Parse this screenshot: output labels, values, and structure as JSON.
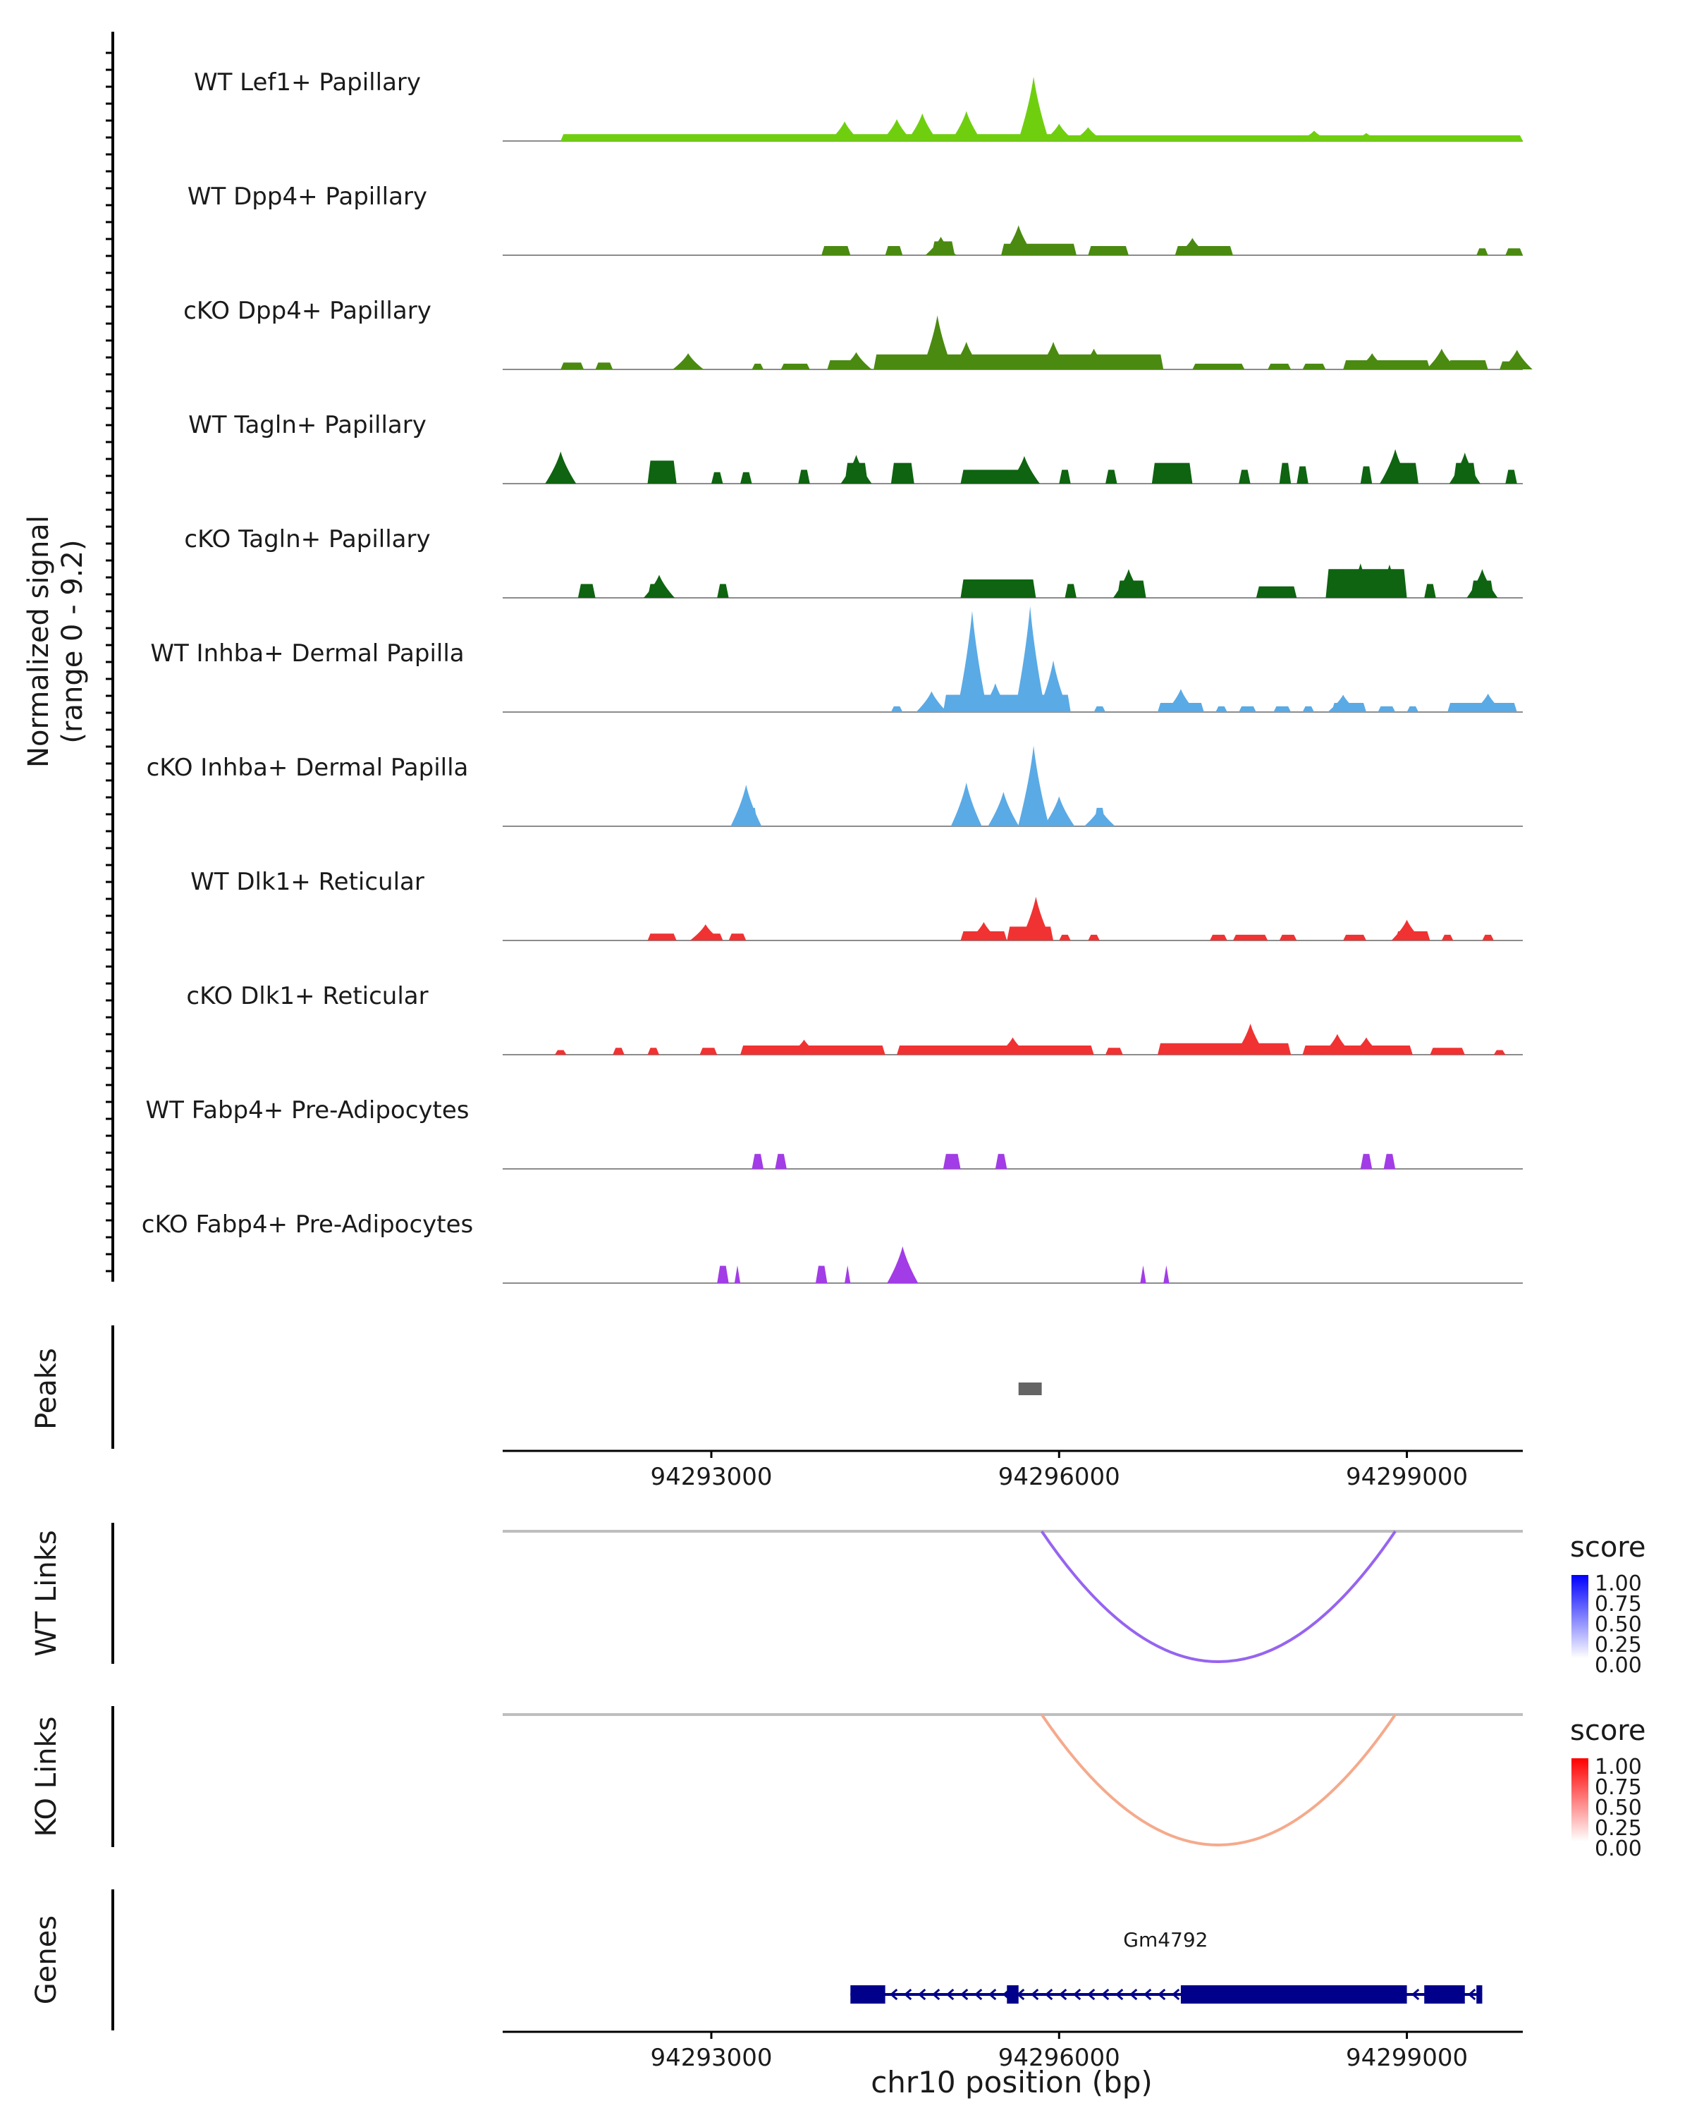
{
  "chart_data": {
    "type": "area",
    "title": "",
    "xlabel": "chr10 position (bp)",
    "ylabel": "Normalized signal\n(range 0 - 9.2)",
    "y_axis_line1": "Normalized signal",
    "y_axis_line2": "(range 0 - 9.2)",
    "ylim": [
      0,
      9.2
    ],
    "xlim": [
      94291200,
      94300000
    ],
    "x_ticks": [
      {
        "value": 94293000,
        "label": "94293000"
      },
      {
        "value": 94296000,
        "label": "94296000"
      },
      {
        "value": 94299000,
        "label": "94299000"
      }
    ],
    "coverage_tracks": [
      {
        "name": "WT Lef1+ Papillary",
        "color": "#6fcf0f",
        "regions": [
          [
            94291700,
            94296000,
            0.6
          ],
          [
            94296000,
            94300000,
            0.5
          ]
        ],
        "peaks": [
          [
            94294150,
            1.7
          ],
          [
            94294600,
            1.9
          ],
          [
            94294820,
            2.4
          ],
          [
            94295200,
            2.6
          ],
          [
            94295780,
            5.6
          ],
          [
            94296000,
            1.5
          ],
          [
            94296250,
            1.2
          ],
          [
            94298200,
            0.9
          ],
          [
            94298650,
            0.7
          ]
        ]
      },
      {
        "name": "WT Dpp4+ Papillary",
        "color": "#4a8a10",
        "regions": [
          [
            94293950,
            94294200,
            0.8
          ],
          [
            94294500,
            94294650,
            0.8
          ],
          [
            94294900,
            94295100,
            1.2
          ],
          [
            94295500,
            94296150,
            1.0
          ],
          [
            94296250,
            94296600,
            0.8
          ],
          [
            94297000,
            94297500,
            0.8
          ],
          [
            94299600,
            94299700,
            0.6
          ],
          [
            94299850,
            94300000,
            0.6
          ]
        ],
        "peaks": [
          [
            94295650,
            2.6
          ],
          [
            94297150,
            1.5
          ],
          [
            94294980,
            1.6
          ]
        ]
      },
      {
        "name": "cKO Dpp4+ Papillary",
        "color": "#4a8a10",
        "regions": [
          [
            94291700,
            94291900,
            0.6
          ],
          [
            94292000,
            94292150,
            0.6
          ],
          [
            94293350,
            94293450,
            0.5
          ],
          [
            94293600,
            94293850,
            0.5
          ],
          [
            94294000,
            94294300,
            0.8
          ],
          [
            94294400,
            94296900,
            1.3
          ],
          [
            94297150,
            94297600,
            0.5
          ],
          [
            94297800,
            94298000,
            0.5
          ],
          [
            94298100,
            94298300,
            0.5
          ],
          [
            94298450,
            94299200,
            0.8
          ],
          [
            94299350,
            94299700,
            0.8
          ],
          [
            94299800,
            94300000,
            0.7
          ],
          [
            94300050,
            94300300,
            0.5
          ]
        ],
        "peaks": [
          [
            94292800,
            1.4
          ],
          [
            94294250,
            1.5
          ],
          [
            94294950,
            4.7
          ],
          [
            94295200,
            2.4
          ],
          [
            94295950,
            2.4
          ],
          [
            94296300,
            1.8
          ],
          [
            94298700,
            1.4
          ],
          [
            94299300,
            1.8
          ],
          [
            94299950,
            1.7
          ],
          [
            94300100,
            3.0
          ],
          [
            94300300,
            2.0
          ]
        ]
      },
      {
        "name": "WT Tagln+ Papillary",
        "color": "#0e6410",
        "regions": [
          [
            94291650,
            94291750,
            2.0
          ],
          [
            94292450,
            94292700,
            2.0
          ],
          [
            94293000,
            94293100,
            1.0
          ],
          [
            94293250,
            94293350,
            1.0
          ],
          [
            94293750,
            94293850,
            1.2
          ],
          [
            94294150,
            94294350,
            1.8
          ],
          [
            94294550,
            94294750,
            1.8
          ],
          [
            94295150,
            94295750,
            1.2
          ],
          [
            94296000,
            94296100,
            1.2
          ],
          [
            94296400,
            94296500,
            1.2
          ],
          [
            94296800,
            94297150,
            1.8
          ],
          [
            94297550,
            94297650,
            1.2
          ],
          [
            94297900,
            94298000,
            1.8
          ],
          [
            94298050,
            94298150,
            1.5
          ],
          [
            94298600,
            94298700,
            1.5
          ],
          [
            94298850,
            94299100,
            1.8
          ],
          [
            94299400,
            94299600,
            1.8
          ],
          [
            94299850,
            94299950,
            1.2
          ],
          [
            94300150,
            94300250,
            1.2
          ],
          [
            94300550,
            94300650,
            1.2
          ]
        ],
        "peaks": [
          [
            94291700,
            2.8
          ],
          [
            94298900,
            3.0
          ],
          [
            94299500,
            2.7
          ],
          [
            94294250,
            2.5
          ],
          [
            94295700,
            2.4
          ]
        ]
      },
      {
        "name": "cKO Tagln+ Papillary",
        "color": "#0e6410",
        "regions": [
          [
            94291850,
            94292000,
            1.2
          ],
          [
            94292450,
            94292600,
            1.2
          ],
          [
            94293050,
            94293150,
            1.2
          ],
          [
            94295150,
            94295800,
            1.6
          ],
          [
            94296050,
            94296150,
            1.2
          ],
          [
            94296500,
            94296750,
            1.5
          ],
          [
            94297700,
            94298050,
            1.0
          ],
          [
            94298300,
            94299000,
            2.5
          ],
          [
            94299150,
            94299250,
            1.2
          ],
          [
            94299550,
            94299750,
            1.5
          ],
          [
            94300200,
            94300400,
            1.5
          ]
        ],
        "peaks": [
          [
            94298600,
            3.0
          ],
          [
            94298850,
            2.9
          ],
          [
            94299650,
            2.5
          ],
          [
            94300300,
            2.6
          ],
          [
            94292550,
            2.0
          ],
          [
            94296600,
            2.5
          ]
        ]
      },
      {
        "name": "WT Inhba+ Dermal Papilla",
        "color": "#5aaae6",
        "regions": [
          [
            94294550,
            94294650,
            0.5
          ],
          [
            94294800,
            94294950,
            0.6
          ],
          [
            94295000,
            94296100,
            1.5
          ],
          [
            94296300,
            94296400,
            0.5
          ],
          [
            94296850,
            94297250,
            0.8
          ],
          [
            94297350,
            94297450,
            0.5
          ],
          [
            94297550,
            94297700,
            0.5
          ],
          [
            94297850,
            94298000,
            0.5
          ],
          [
            94298100,
            94298200,
            0.5
          ],
          [
            94298350,
            94298650,
            0.8
          ],
          [
            94298750,
            94298900,
            0.5
          ],
          [
            94299000,
            94299100,
            0.5
          ],
          [
            94299350,
            94299950,
            0.8
          ]
        ],
        "peaks": [
          [
            94295250,
            8.8
          ],
          [
            94295750,
            9.2
          ],
          [
            94295450,
            2.5
          ],
          [
            94295950,
            4.5
          ],
          [
            94294900,
            1.8
          ],
          [
            94297050,
            2.0
          ],
          [
            94298450,
            1.5
          ],
          [
            94299700,
            1.6
          ]
        ]
      },
      {
        "name": "cKO Inhba+ Dermal Papilla",
        "color": "#5aaae6",
        "regions": [
          [
            94293250,
            94293400,
            1.6
          ],
          [
            94295150,
            94295250,
            1.6
          ],
          [
            94295500,
            94295550,
            1.6
          ],
          [
            94295700,
            94295850,
            1.6
          ],
          [
            94295950,
            94296050,
            1.6
          ],
          [
            94296300,
            94296400,
            1.6
          ]
        ],
        "peaks": [
          [
            94293300,
            3.6
          ],
          [
            94295200,
            3.8
          ],
          [
            94295520,
            3.0
          ],
          [
            94295780,
            7.0
          ],
          [
            94296000,
            2.6
          ],
          [
            94296350,
            1.6
          ]
        ]
      },
      {
        "name": "WT Dlk1+ Reticular",
        "color": "#f03232",
        "regions": [
          [
            94292450,
            94292700,
            0.6
          ],
          [
            94292900,
            94293100,
            0.6
          ],
          [
            94293150,
            94293300,
            0.6
          ],
          [
            94295150,
            94295550,
            0.8
          ],
          [
            94295550,
            94295950,
            1.2
          ],
          [
            94296000,
            94296100,
            0.5
          ],
          [
            94296250,
            94296350,
            0.5
          ],
          [
            94297300,
            94297450,
            0.5
          ],
          [
            94297500,
            94297800,
            0.5
          ],
          [
            94297900,
            94298050,
            0.5
          ],
          [
            94298450,
            94298650,
            0.5
          ],
          [
            94298900,
            94299200,
            0.8
          ],
          [
            94299300,
            94299400,
            0.5
          ],
          [
            94299650,
            94299750,
            0.5
          ],
          [
            94300000,
            94300100,
            0.5
          ]
        ],
        "peaks": [
          [
            94292950,
            1.4
          ],
          [
            94295350,
            1.6
          ],
          [
            94295800,
            3.8
          ],
          [
            94299000,
            1.8
          ]
        ]
      },
      {
        "name": "cKO Dlk1+ Reticular",
        "color": "#f03232",
        "regions": [
          [
            94291650,
            94291750,
            0.4
          ],
          [
            94292150,
            94292250,
            0.6
          ],
          [
            94292450,
            94292550,
            0.6
          ],
          [
            94292900,
            94293050,
            0.6
          ],
          [
            94293250,
            94294500,
            0.8
          ],
          [
            94294600,
            94296300,
            0.8
          ],
          [
            94296400,
            94296550,
            0.6
          ],
          [
            94296850,
            94298000,
            1.0
          ],
          [
            94298100,
            94299050,
            0.8
          ],
          [
            94299200,
            94299500,
            0.6
          ],
          [
            94299750,
            94299850,
            0.4
          ],
          [
            94300050,
            94300200,
            0.6
          ],
          [
            94300400,
            94300550,
            0.5
          ]
        ],
        "peaks": [
          [
            94293800,
            1.3
          ],
          [
            94295600,
            1.5
          ],
          [
            94297650,
            2.7
          ],
          [
            94298400,
            1.8
          ],
          [
            94298650,
            1.5
          ],
          [
            94300400,
            1.0
          ]
        ]
      },
      {
        "name": "WT Fabp4+ Pre-Adipocytes",
        "color": "#a23ce6",
        "regions": [
          [
            94293350,
            94293450,
            1.3
          ],
          [
            94293550,
            94293650,
            1.3
          ],
          [
            94295000,
            94295150,
            1.3
          ],
          [
            94295450,
            94295550,
            1.3
          ],
          [
            94298600,
            94298700,
            1.3
          ],
          [
            94298800,
            94298900,
            1.3
          ]
        ],
        "peaks": []
      },
      {
        "name": "cKO Fabp4+ Pre-Adipocytes",
        "color": "#a23ce6",
        "regions": [
          [
            94293050,
            94293150,
            1.5
          ],
          [
            94293200,
            94293250,
            1.5
          ],
          [
            94293900,
            94294000,
            1.5
          ],
          [
            94294150,
            94294200,
            1.5
          ],
          [
            94294600,
            94294700,
            1.5
          ],
          [
            94296700,
            94296750,
            1.5
          ],
          [
            94296900,
            94296950,
            1.5
          ],
          [
            94300750,
            94300800,
            1.5
          ]
        ],
        "peaks": [
          [
            94294650,
            3.2
          ],
          [
            94300780,
            1.6
          ]
        ]
      }
    ],
    "peaks_track": {
      "label": "Peaks",
      "color": "#646464",
      "intervals": [
        [
          94295650,
          94295850
        ]
      ]
    },
    "link_tracks": [
      {
        "label": "WT Links",
        "color": "#9664f0",
        "links": [
          [
            94295850,
            94298900
          ]
        ],
        "legend_title": "score",
        "legend_colors": [
          "#ffffff",
          "#0000ff"
        ],
        "legend_ticks": [
          "1.00",
          "0.75",
          "0.50",
          "0.25",
          "0.00"
        ]
      },
      {
        "label": "KO Links",
        "color": "#f5aa8c",
        "links": [
          [
            94295850,
            94298900
          ]
        ],
        "legend_title": "score",
        "legend_colors": [
          "#ffffff",
          "#ff0000"
        ],
        "legend_ticks": [
          "1.00",
          "0.75",
          "0.50",
          "0.25",
          "0.00"
        ]
      }
    ],
    "genes_track": {
      "label": "Genes",
      "color": "#00008b",
      "genes": [
        {
          "name": "Gm4792",
          "start": 94294200,
          "end": 94299650,
          "strand": "-",
          "exons": [
            [
              94294200,
              94294500
            ],
            [
              94295550,
              94295650
            ],
            [
              94297050,
              94299000
            ],
            [
              94299150,
              94299500
            ],
            [
              94299600,
              94299650
            ]
          ]
        }
      ]
    }
  }
}
